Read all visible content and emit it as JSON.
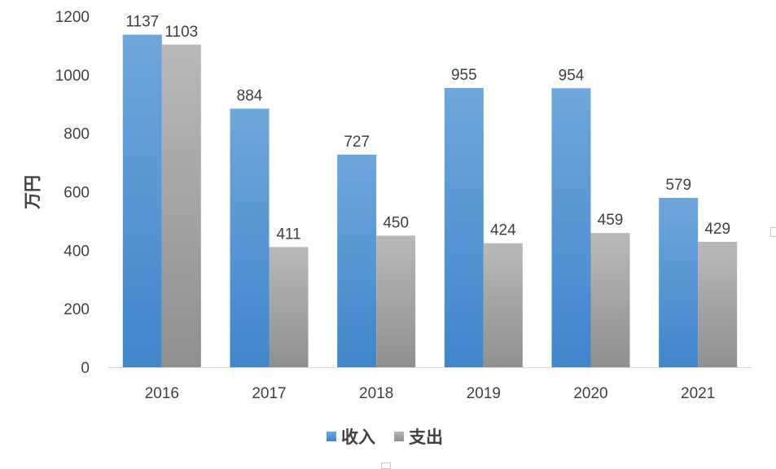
{
  "chart_data": {
    "type": "bar",
    "categories": [
      "2016",
      "2017",
      "2018",
      "2019",
      "2020",
      "2021"
    ],
    "series": [
      {
        "name": "收入",
        "values": [
          1137,
          884,
          727,
          955,
          954,
          579
        ],
        "color": "#5b9bd5"
      },
      {
        "name": "支出",
        "values": [
          1103,
          411,
          450,
          424,
          459,
          429
        ],
        "color": "#a5a5a5"
      }
    ],
    "ylabel": "万円",
    "ylim": [
      0,
      1200
    ],
    "yticks": [
      "0",
      "200",
      "400",
      "600",
      "800",
      "1000",
      "1200"
    ],
    "grid": false,
    "legend_position": "bottom"
  }
}
